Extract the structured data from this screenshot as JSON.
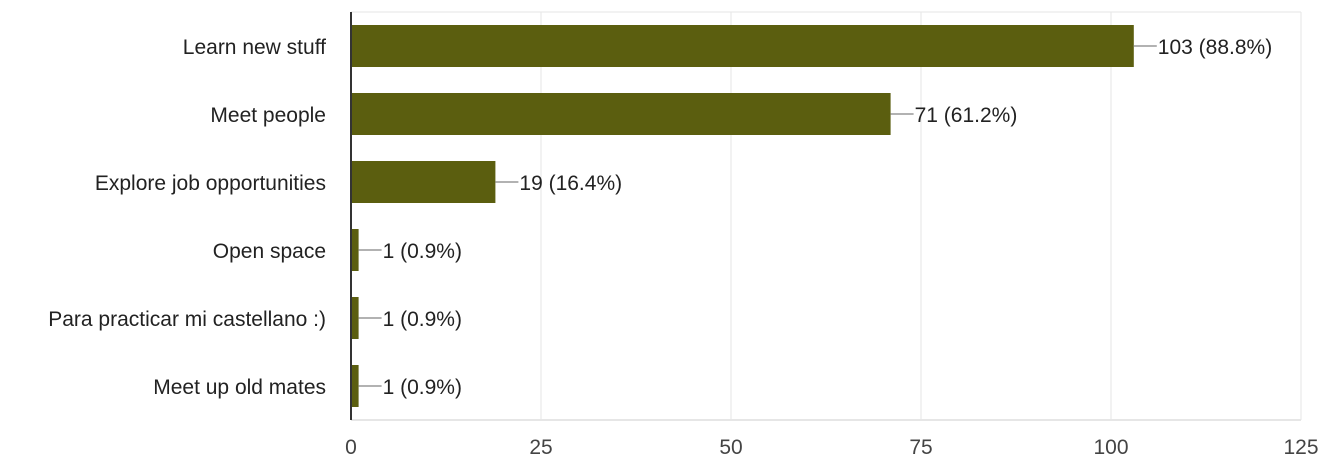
{
  "chart_data": {
    "type": "bar",
    "orientation": "horizontal",
    "title": "",
    "xlabel": "",
    "ylabel": "",
    "categories": [
      "Learn new stuff",
      "Meet people",
      "Explore job opportunities",
      "Open space",
      "Para practicar mi castellano :)",
      "Meet up old mates"
    ],
    "values": [
      103,
      71,
      19,
      1,
      1,
      1
    ],
    "data_labels": [
      "103 (88.8%)",
      "71 (61.2%)",
      "19 (16.4%)",
      "1 (0.9%)",
      "1 (0.9%)",
      "1 (0.9%)"
    ],
    "xlim": [
      0,
      125
    ],
    "xticks": [
      0,
      25,
      50,
      75,
      100,
      125
    ],
    "xtick_labels": [
      "0",
      "25",
      "50",
      "75",
      "100",
      "125"
    ],
    "grid": true,
    "legend": "none",
    "colors": {
      "bar": "#5b5e0f",
      "grid": "#e6e6e6",
      "axis": "#333333",
      "leader": "#999999",
      "text": "#222222",
      "tick_text": "#444444"
    }
  }
}
